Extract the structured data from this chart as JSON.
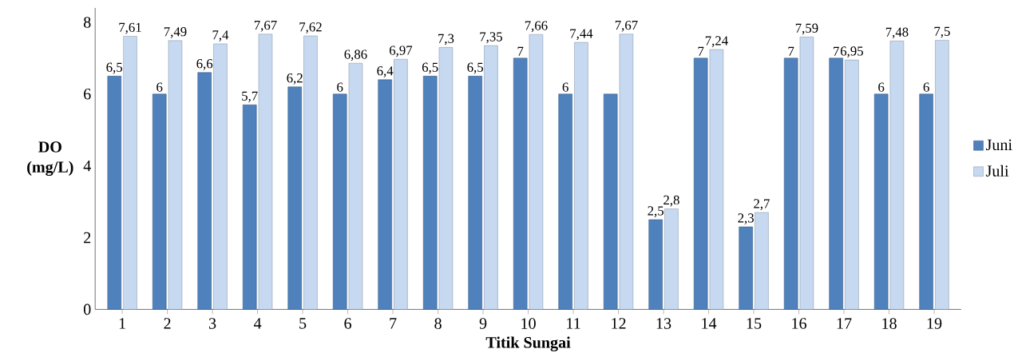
{
  "chart_data": {
    "type": "bar",
    "xlabel": "Titik Sungai",
    "ylabel": "DO (mg/L)",
    "categories": [
      "1",
      "2",
      "3",
      "4",
      "5",
      "6",
      "7",
      "8",
      "9",
      "10",
      "11",
      "12",
      "13",
      "14",
      "15",
      "16",
      "17",
      "18",
      "19"
    ],
    "series": [
      {
        "name": "Juni",
        "color": "#4f81bd",
        "values": [
          6.5,
          6,
          6.6,
          5.7,
          6.2,
          6,
          6.4,
          6.5,
          6.5,
          7,
          6,
          6,
          2.5,
          7,
          2.3,
          7,
          7,
          6,
          6
        ],
        "value_labels": [
          "6,5",
          "6",
          "6,6",
          "5,7",
          "6,2",
          "6",
          "6,4",
          "6,5",
          "6,5",
          "7",
          "6",
          null,
          "2,5",
          "7",
          "2,3",
          "7",
          "7",
          "6",
          "6"
        ]
      },
      {
        "name": "Juli",
        "color": "#c6d9f1",
        "values": [
          7.61,
          7.49,
          7.4,
          7.67,
          7.62,
          6.86,
          6.97,
          7.3,
          7.35,
          7.66,
          7.44,
          7.67,
          2.8,
          7.24,
          2.7,
          7.59,
          6.95,
          7.48,
          7.5
        ],
        "value_labels": [
          "7,61",
          "7,49",
          "7,4",
          "7,67",
          "7,62",
          "6,86",
          "6,97",
          "7,3",
          "7,35",
          "7,66",
          "7,44",
          "7,67",
          "2,8",
          "7,24",
          "2,7",
          "7,59",
          "6,95",
          "7,48",
          "7,5"
        ]
      }
    ],
    "ylim": [
      0,
      8.4
    ],
    "yticks": [
      0,
      2,
      4,
      6,
      8
    ],
    "grid": false,
    "legend": "right"
  }
}
